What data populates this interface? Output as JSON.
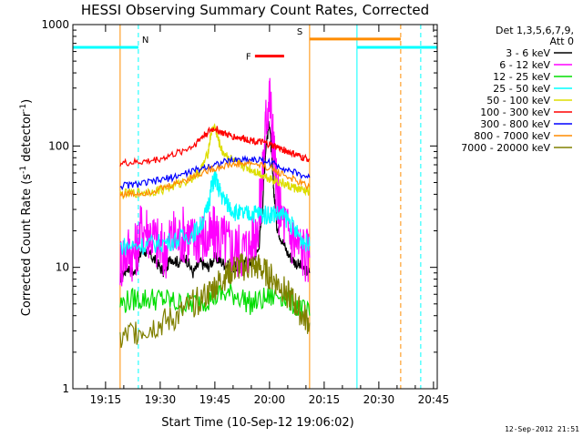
{
  "chart_data": {
    "type": "line",
    "title": "HESSI Observing Summary Count Rates, Corrected",
    "xlabel": "Start Time (10-Sep-12 19:06:02)",
    "ylabel_main": "Corrected Count Rate (s",
    "ylabel_sup1": "-1",
    "ylabel_mid": " detector",
    "ylabel_sup2": "-1",
    "ylabel_end": ")",
    "yscale": "log",
    "ylim": [
      1,
      1000
    ],
    "xlim_minutes": [
      6.03,
      106.03
    ],
    "x_ticks": [
      {
        "min": 15,
        "label": "19:15"
      },
      {
        "min": 30,
        "label": "19:30"
      },
      {
        "min": 45,
        "label": "19:45"
      },
      {
        "min": 60,
        "label": "20:00"
      },
      {
        "min": 75,
        "label": "20:15"
      },
      {
        "min": 90,
        "label": "20:30"
      },
      {
        "min": 105,
        "label": "20:45"
      }
    ],
    "y_ticks": [
      {
        "value": 1,
        "label": "1"
      },
      {
        "value": 10,
        "label": "10"
      },
      {
        "value": 100,
        "label": "100"
      },
      {
        "value": 1000,
        "label": "1000"
      }
    ],
    "legend_header_1": "Det 1,3,5,6,7,9,",
    "legend_header_2": "Att 0",
    "footer_date": "12-Sep-2012 21:51",
    "series": [
      {
        "name": "3 - 6 keV",
        "color": "#000000",
        "x": [
          19,
          21,
          23,
          25,
          27,
          29,
          31,
          33,
          35,
          37,
          39,
          41,
          43,
          45,
          47,
          49,
          51,
          53,
          55,
          57,
          58,
          59,
          60,
          61,
          62,
          63,
          65,
          67,
          69,
          71
        ],
        "y": [
          8,
          10,
          9,
          14,
          13,
          11,
          9,
          12,
          11,
          12,
          9,
          11,
          10,
          12,
          11,
          10,
          10,
          11,
          11,
          14,
          30,
          100,
          160,
          50,
          22,
          18,
          13,
          11,
          10,
          9
        ]
      },
      {
        "name": "6 - 12 keV",
        "color": "#ff00ff",
        "x": [
          19,
          21,
          23,
          25,
          27,
          29,
          31,
          33,
          35,
          37,
          39,
          41,
          43,
          45,
          47,
          49,
          51,
          53,
          55,
          57,
          58,
          59,
          60,
          61,
          62,
          63,
          65,
          67,
          69,
          71
        ],
        "y": [
          11,
          14,
          13,
          22,
          20,
          16,
          13,
          18,
          17,
          20,
          16,
          19,
          16,
          19,
          17,
          15,
          14,
          14,
          15,
          25,
          50,
          160,
          260,
          110,
          40,
          28,
          20,
          16,
          14,
          12
        ]
      },
      {
        "name": "12 - 25 keV",
        "color": "#00dd00",
        "x": [
          19,
          23,
          27,
          31,
          35,
          39,
          43,
          47,
          51,
          55,
          59,
          63,
          67,
          71
        ],
        "y": [
          5,
          5.5,
          5.5,
          5.5,
          5,
          5,
          5.5,
          6,
          6,
          5,
          5.5,
          6,
          5,
          4
        ]
      },
      {
        "name": "25 - 50 keV",
        "color": "#00ffff",
        "x": [
          19,
          23,
          27,
          31,
          35,
          39,
          41,
          43,
          44,
          45,
          46,
          47,
          49,
          51,
          53,
          55,
          57,
          59,
          61,
          63,
          65,
          67,
          69,
          71
        ],
        "y": [
          15,
          15,
          15.5,
          16,
          17,
          19,
          22,
          30,
          45,
          55,
          45,
          38,
          32,
          28,
          27,
          28,
          28,
          27,
          28,
          27,
          25,
          20,
          17,
          15
        ]
      },
      {
        "name": "50 - 100 keV",
        "color": "#dddd00",
        "x": [
          19,
          23,
          27,
          31,
          35,
          39,
          41,
          43,
          44,
          45,
          46,
          47,
          49,
          51,
          53,
          55,
          57,
          59,
          61,
          63,
          65,
          67,
          69,
          71
        ],
        "y": [
          40,
          41,
          42,
          44,
          48,
          55,
          62,
          85,
          130,
          145,
          110,
          90,
          80,
          72,
          68,
          64,
          60,
          56,
          53,
          50,
          47,
          45,
          43,
          42
        ]
      },
      {
        "name": "100 - 300 keV",
        "color": "#ff0000",
        "x": [
          19,
          23,
          27,
          31,
          35,
          39,
          41,
          43,
          45,
          47,
          49,
          51,
          53,
          55,
          57,
          59,
          61,
          63,
          65,
          67,
          69,
          71
        ],
        "y": [
          72,
          73,
          75,
          80,
          88,
          100,
          115,
          130,
          140,
          128,
          122,
          118,
          115,
          112,
          108,
          105,
          100,
          95,
          90,
          85,
          80,
          78
        ]
      },
      {
        "name": "300 - 800 keV",
        "color": "#0000ff",
        "x": [
          19,
          23,
          27,
          31,
          35,
          39,
          43,
          47,
          51,
          55,
          59,
          63,
          67,
          71
        ],
        "y": [
          47,
          48,
          50,
          53,
          57,
          62,
          68,
          73,
          77,
          78,
          75,
          68,
          60,
          55
        ]
      },
      {
        "name": "800 - 7000 keV",
        "color": "#ff8c00",
        "x": [
          19,
          23,
          27,
          31,
          35,
          39,
          43,
          47,
          51,
          55,
          59,
          63,
          67,
          71
        ],
        "y": [
          40,
          40.5,
          42,
          45,
          50,
          56,
          63,
          68,
          71,
          72,
          68,
          60,
          52,
          46
        ]
      },
      {
        "name": "7000 - 20000 keV",
        "color": "#808000",
        "x": [
          19,
          23,
          27,
          31,
          35,
          39,
          43,
          45,
          47,
          49,
          51,
          53,
          55,
          57,
          59,
          61,
          63,
          65,
          67,
          69,
          71
        ],
        "y": [
          2.5,
          3,
          3.2,
          3.5,
          4,
          5,
          6,
          7,
          8,
          9,
          10,
          10,
          10,
          10,
          9,
          8,
          7,
          6,
          5,
          4,
          3.5
        ]
      }
    ],
    "segments": [
      {
        "label": "N",
        "color": "#00ffff",
        "x_start": 6.03,
        "x_end": 24,
        "value": 650
      },
      {
        "label": "",
        "color": "#00ffff",
        "x_start": 84,
        "x_end": 106.03,
        "value": 650
      },
      {
        "label": "S",
        "color": "#ff8c00",
        "x_start": 71,
        "x_end": 96,
        "value": 760
      },
      {
        "label": "F",
        "color": "#ff0000",
        "x_start": 56,
        "x_end": 64,
        "value": 550
      }
    ],
    "vlines": [
      {
        "x": 6.03,
        "color": "#00ffff",
        "dashed": false
      },
      {
        "x": 19,
        "color": "#ff8c00",
        "dashed": false
      },
      {
        "x": 24,
        "color": "#00ffff",
        "dashed": true
      },
      {
        "x": 71,
        "color": "#ff8c00",
        "dashed": false
      },
      {
        "x": 84,
        "color": "#00ffff",
        "dashed": false
      },
      {
        "x": 96,
        "color": "#ff8c00",
        "dashed": true
      },
      {
        "x": 101.5,
        "color": "#00ffff",
        "dashed": true
      }
    ]
  }
}
